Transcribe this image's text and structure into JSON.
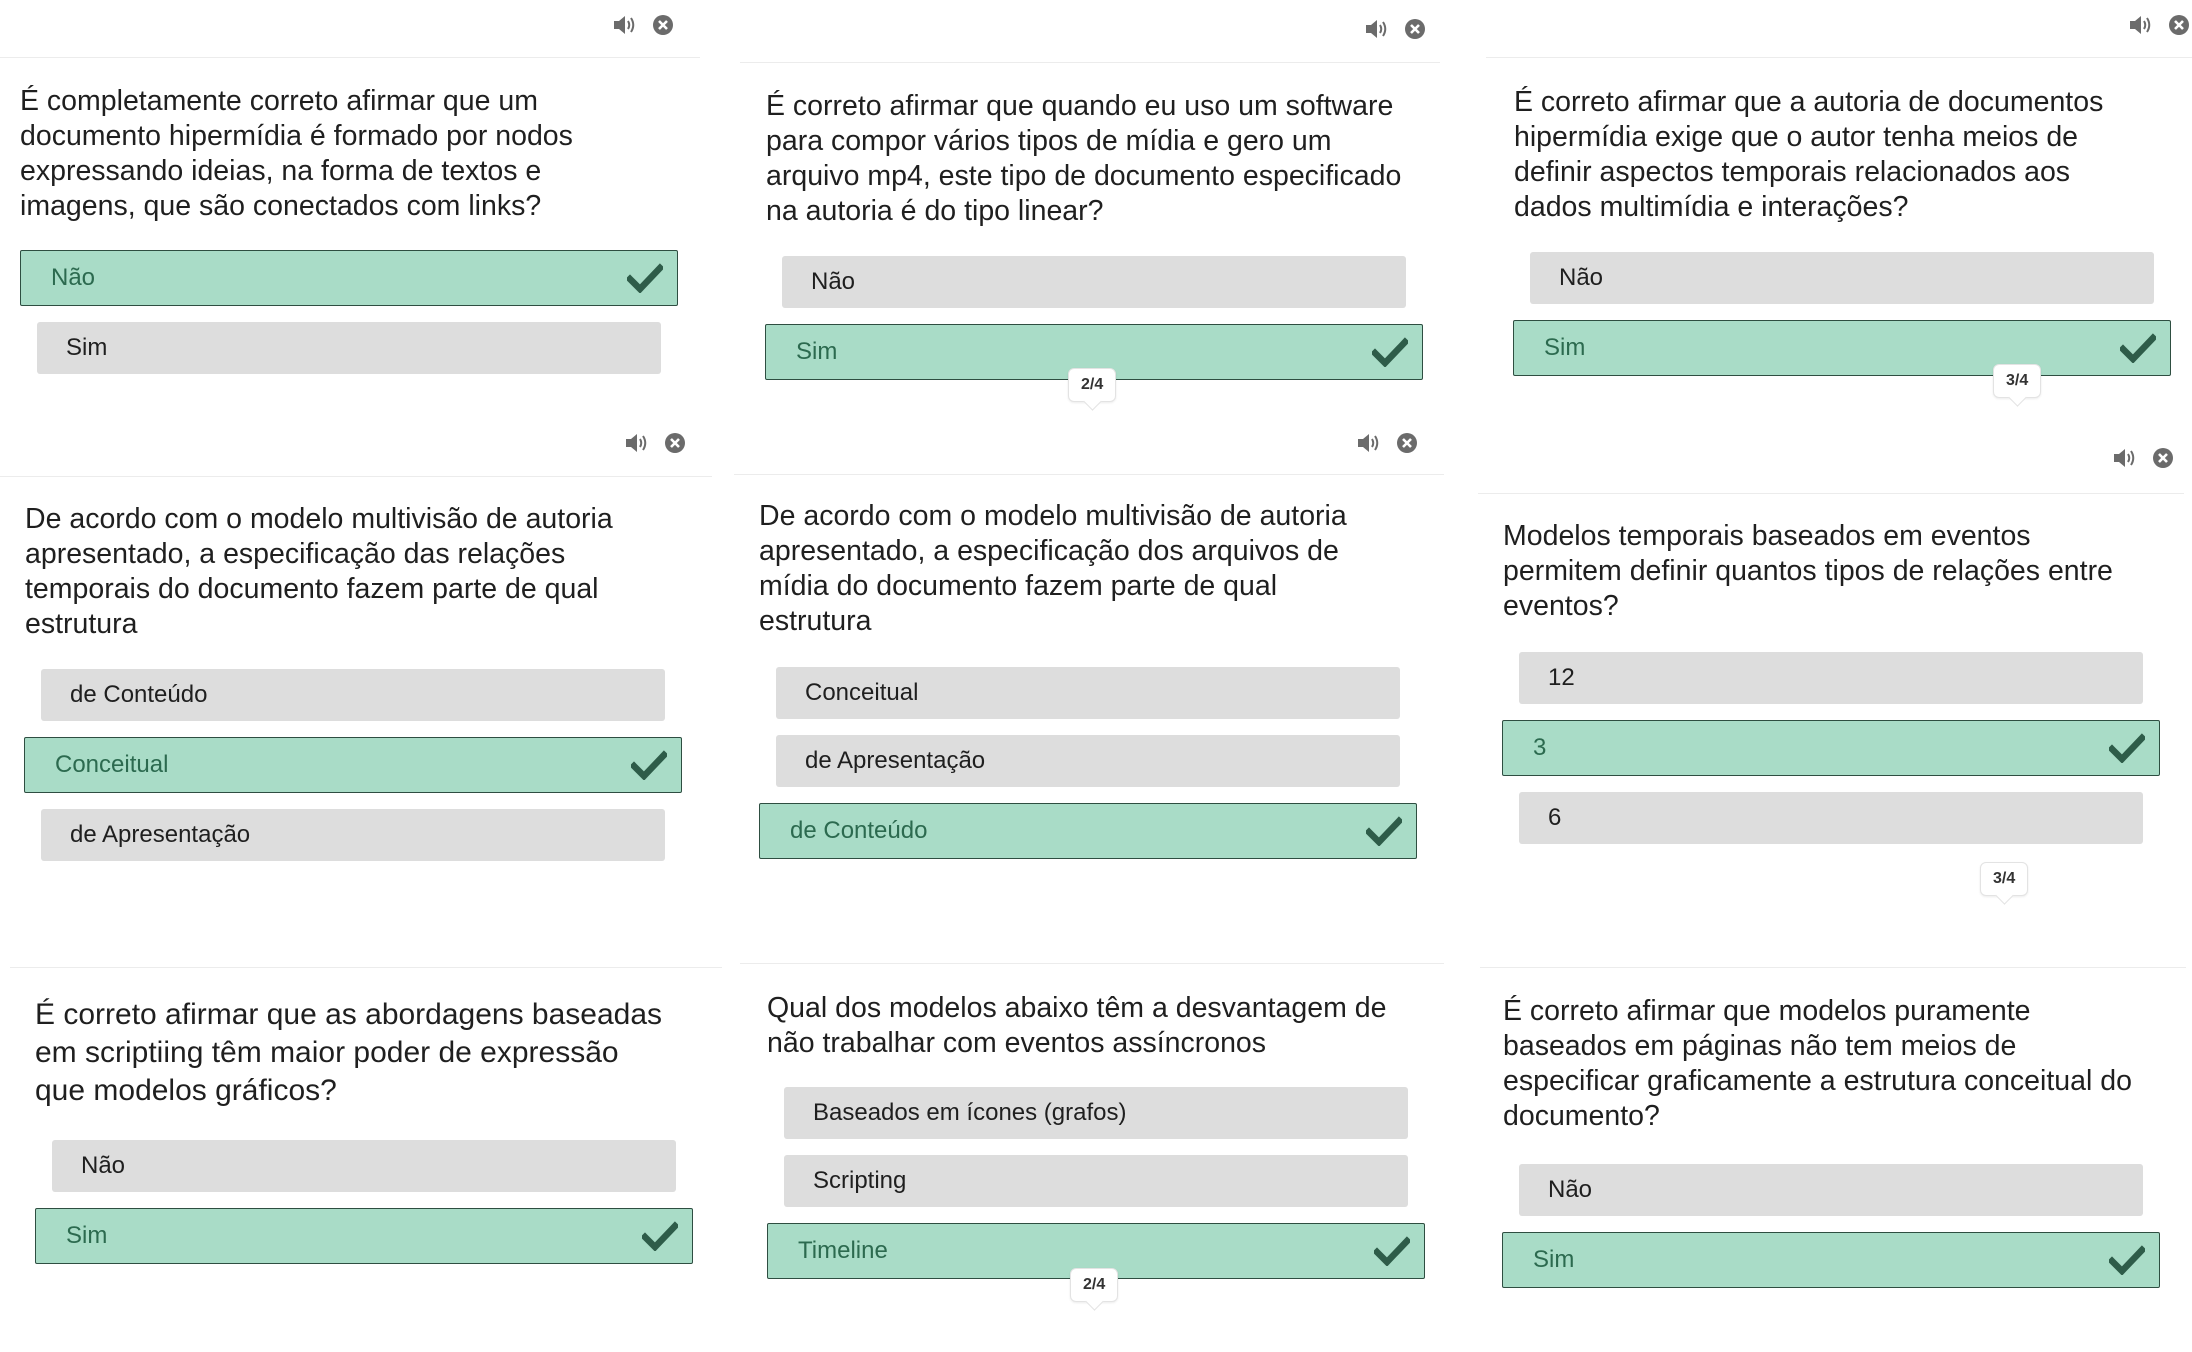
{
  "colors": {
    "correct_bg": "#a9dcc7",
    "correct_border": "#2e4e41",
    "check": "#2e5c49",
    "option_bg": "#dddddd",
    "icon": "#6b6b6b"
  },
  "icons": {
    "audio": "speaker-icon",
    "close": "close-icon",
    "check": "checkmark-icon"
  },
  "cards": [
    {
      "question": "É completamente correto afirmar que um documento hipermídia é formado por nodos expressando ideias, na forma de textos e imagens, que são conectados com links?",
      "options": [
        {
          "label": "Não",
          "correct": true
        },
        {
          "label": "Sim",
          "correct": false
        }
      ],
      "progress": ""
    },
    {
      "question": "É correto afirmar que quando eu uso um software para compor vários tipos de mídia e gero um arquivo mp4, este tipo de documento especificado na autoria é do tipo linear?",
      "options": [
        {
          "label": "Não",
          "correct": false
        },
        {
          "label": "Sim",
          "correct": true
        }
      ],
      "progress": "2/4"
    },
    {
      "question": "É correto afirmar que a autoria de documentos hipermídia exige que o autor tenha meios de definir aspectos temporais relacionados aos dados multimídia e interações?",
      "options": [
        {
          "label": "Não",
          "correct": false
        },
        {
          "label": "Sim",
          "correct": true
        }
      ],
      "progress": "3/4"
    },
    {
      "question": "De acordo com o modelo multivisão de autoria apresentado, a especificação das relações temporais do documento fazem parte de qual estrutura",
      "options": [
        {
          "label": "de Conteúdo",
          "correct": false
        },
        {
          "label": "Conceitual",
          "correct": true
        },
        {
          "label": "de Apresentação",
          "correct": false
        }
      ],
      "progress": ""
    },
    {
      "question": "De acordo com o modelo multivisão de autoria apresentado, a especificação dos arquivos de mídia do documento fazem parte de qual estrutura",
      "options": [
        {
          "label": "Conceitual",
          "correct": false
        },
        {
          "label": "de Apresentação",
          "correct": false
        },
        {
          "label": "de Conteúdo",
          "correct": true
        }
      ],
      "progress": ""
    },
    {
      "question": "Modelos temporais baseados em eventos permitem definir quantos tipos de relações entre eventos?",
      "options": [
        {
          "label": "12",
          "correct": false
        },
        {
          "label": "3",
          "correct": true
        },
        {
          "label": "6",
          "correct": false
        }
      ],
      "progress": "3/4"
    },
    {
      "question": "É correto afirmar que as abordagens baseadas em scriptiing têm maior poder de expressão que modelos gráficos?",
      "options": [
        {
          "label": "Não",
          "correct": false
        },
        {
          "label": "Sim",
          "correct": true
        }
      ],
      "progress": ""
    },
    {
      "question": "Qual dos modelos abaixo têm a desvantagem de não trabalhar com eventos assíncronos",
      "options": [
        {
          "label": "Baseados em ícones (grafos)",
          "correct": false
        },
        {
          "label": "Scripting",
          "correct": false
        },
        {
          "label": "Timeline",
          "correct": true
        }
      ],
      "progress": "2/4"
    },
    {
      "question": "É correto afirmar que modelos puramente baseados em páginas não tem meios de especificar graficamente a estrutura conceitual do documento?",
      "options": [
        {
          "label": "Não",
          "correct": false
        },
        {
          "label": "Sim",
          "correct": true
        }
      ],
      "progress": ""
    }
  ]
}
